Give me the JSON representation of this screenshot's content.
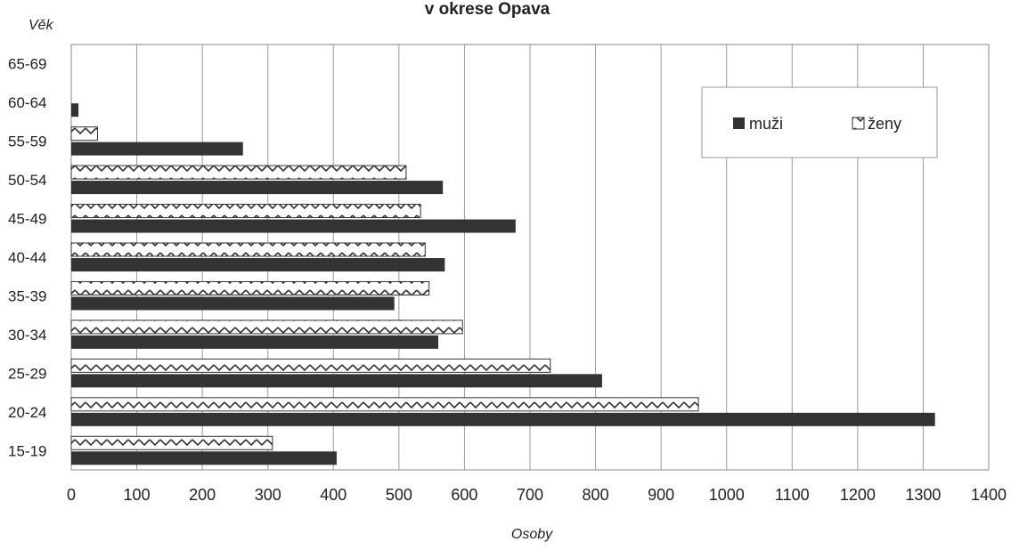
{
  "chart_data": {
    "type": "bar",
    "orientation": "horizontal",
    "title": "v okrese Opava",
    "xlabel": "Osoby",
    "ylabel": "Věk",
    "xlim": [
      0,
      1400
    ],
    "x_ticks": [
      0,
      100,
      200,
      300,
      400,
      500,
      600,
      700,
      800,
      900,
      1000,
      1100,
      1200,
      1300,
      1400
    ],
    "grid": "vertical",
    "legend_position": "top-right",
    "categories": [
      "15-19",
      "20-24",
      "25-29",
      "30-34",
      "35-39",
      "40-44",
      "45-49",
      "50-54",
      "55-59",
      "60-64",
      "65-69"
    ],
    "series": [
      {
        "name": "muži",
        "color": "#333333",
        "pattern": "solid",
        "values": [
          405,
          1318,
          810,
          560,
          493,
          570,
          678,
          567,
          262,
          11,
          0
        ]
      },
      {
        "name": "ženy",
        "color": "#ffffff",
        "pattern": "zigzag",
        "values": [
          307,
          957,
          731,
          597,
          546,
          540,
          533,
          511,
          40,
          0,
          0
        ]
      }
    ]
  }
}
